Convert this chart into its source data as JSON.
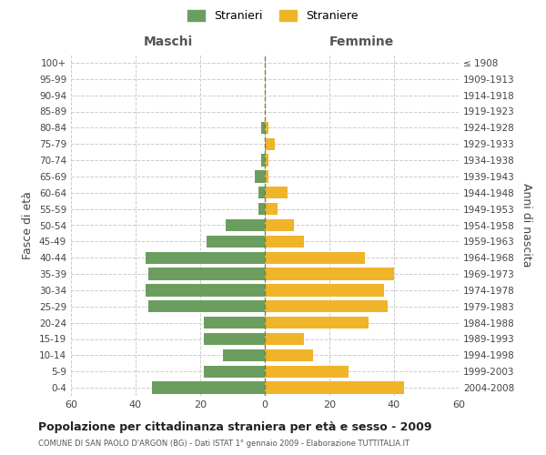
{
  "age_groups": [
    "0-4",
    "5-9",
    "10-14",
    "15-19",
    "20-24",
    "25-29",
    "30-34",
    "35-39",
    "40-44",
    "45-49",
    "50-54",
    "55-59",
    "60-64",
    "65-69",
    "70-74",
    "75-79",
    "80-84",
    "85-89",
    "90-94",
    "95-99",
    "100+"
  ],
  "birth_years": [
    "2004-2008",
    "1999-2003",
    "1994-1998",
    "1989-1993",
    "1984-1988",
    "1979-1983",
    "1974-1978",
    "1969-1973",
    "1964-1968",
    "1959-1963",
    "1954-1958",
    "1949-1953",
    "1944-1948",
    "1939-1943",
    "1934-1938",
    "1929-1933",
    "1924-1928",
    "1919-1923",
    "1914-1918",
    "1909-1913",
    "≤ 1908"
  ],
  "males": [
    35,
    19,
    13,
    19,
    19,
    36,
    37,
    36,
    37,
    18,
    12,
    2,
    2,
    3,
    1,
    0,
    1,
    0,
    0,
    0,
    0
  ],
  "females": [
    43,
    26,
    15,
    12,
    32,
    38,
    37,
    40,
    31,
    12,
    9,
    4,
    7,
    1,
    1,
    3,
    1,
    0,
    0,
    0,
    0
  ],
  "male_color": "#6b9e5e",
  "female_color": "#f0b429",
  "grid_color": "#cccccc",
  "center_line_color": "#808040",
  "xlim": 60,
  "title": "Popolazione per cittadinanza straniera per età e sesso - 2009",
  "subtitle": "COMUNE DI SAN PAOLO D'ARGON (BG) - Dati ISTAT 1° gennaio 2009 - Elaborazione TUTTITALIA.IT",
  "xlabel_left": "Maschi",
  "xlabel_right": "Femmine",
  "ylabel_left": "Fasce di età",
  "ylabel_right": "Anni di nascita",
  "legend_stranieri": "Stranieri",
  "legend_straniere": "Straniere",
  "background_color": "#ffffff"
}
